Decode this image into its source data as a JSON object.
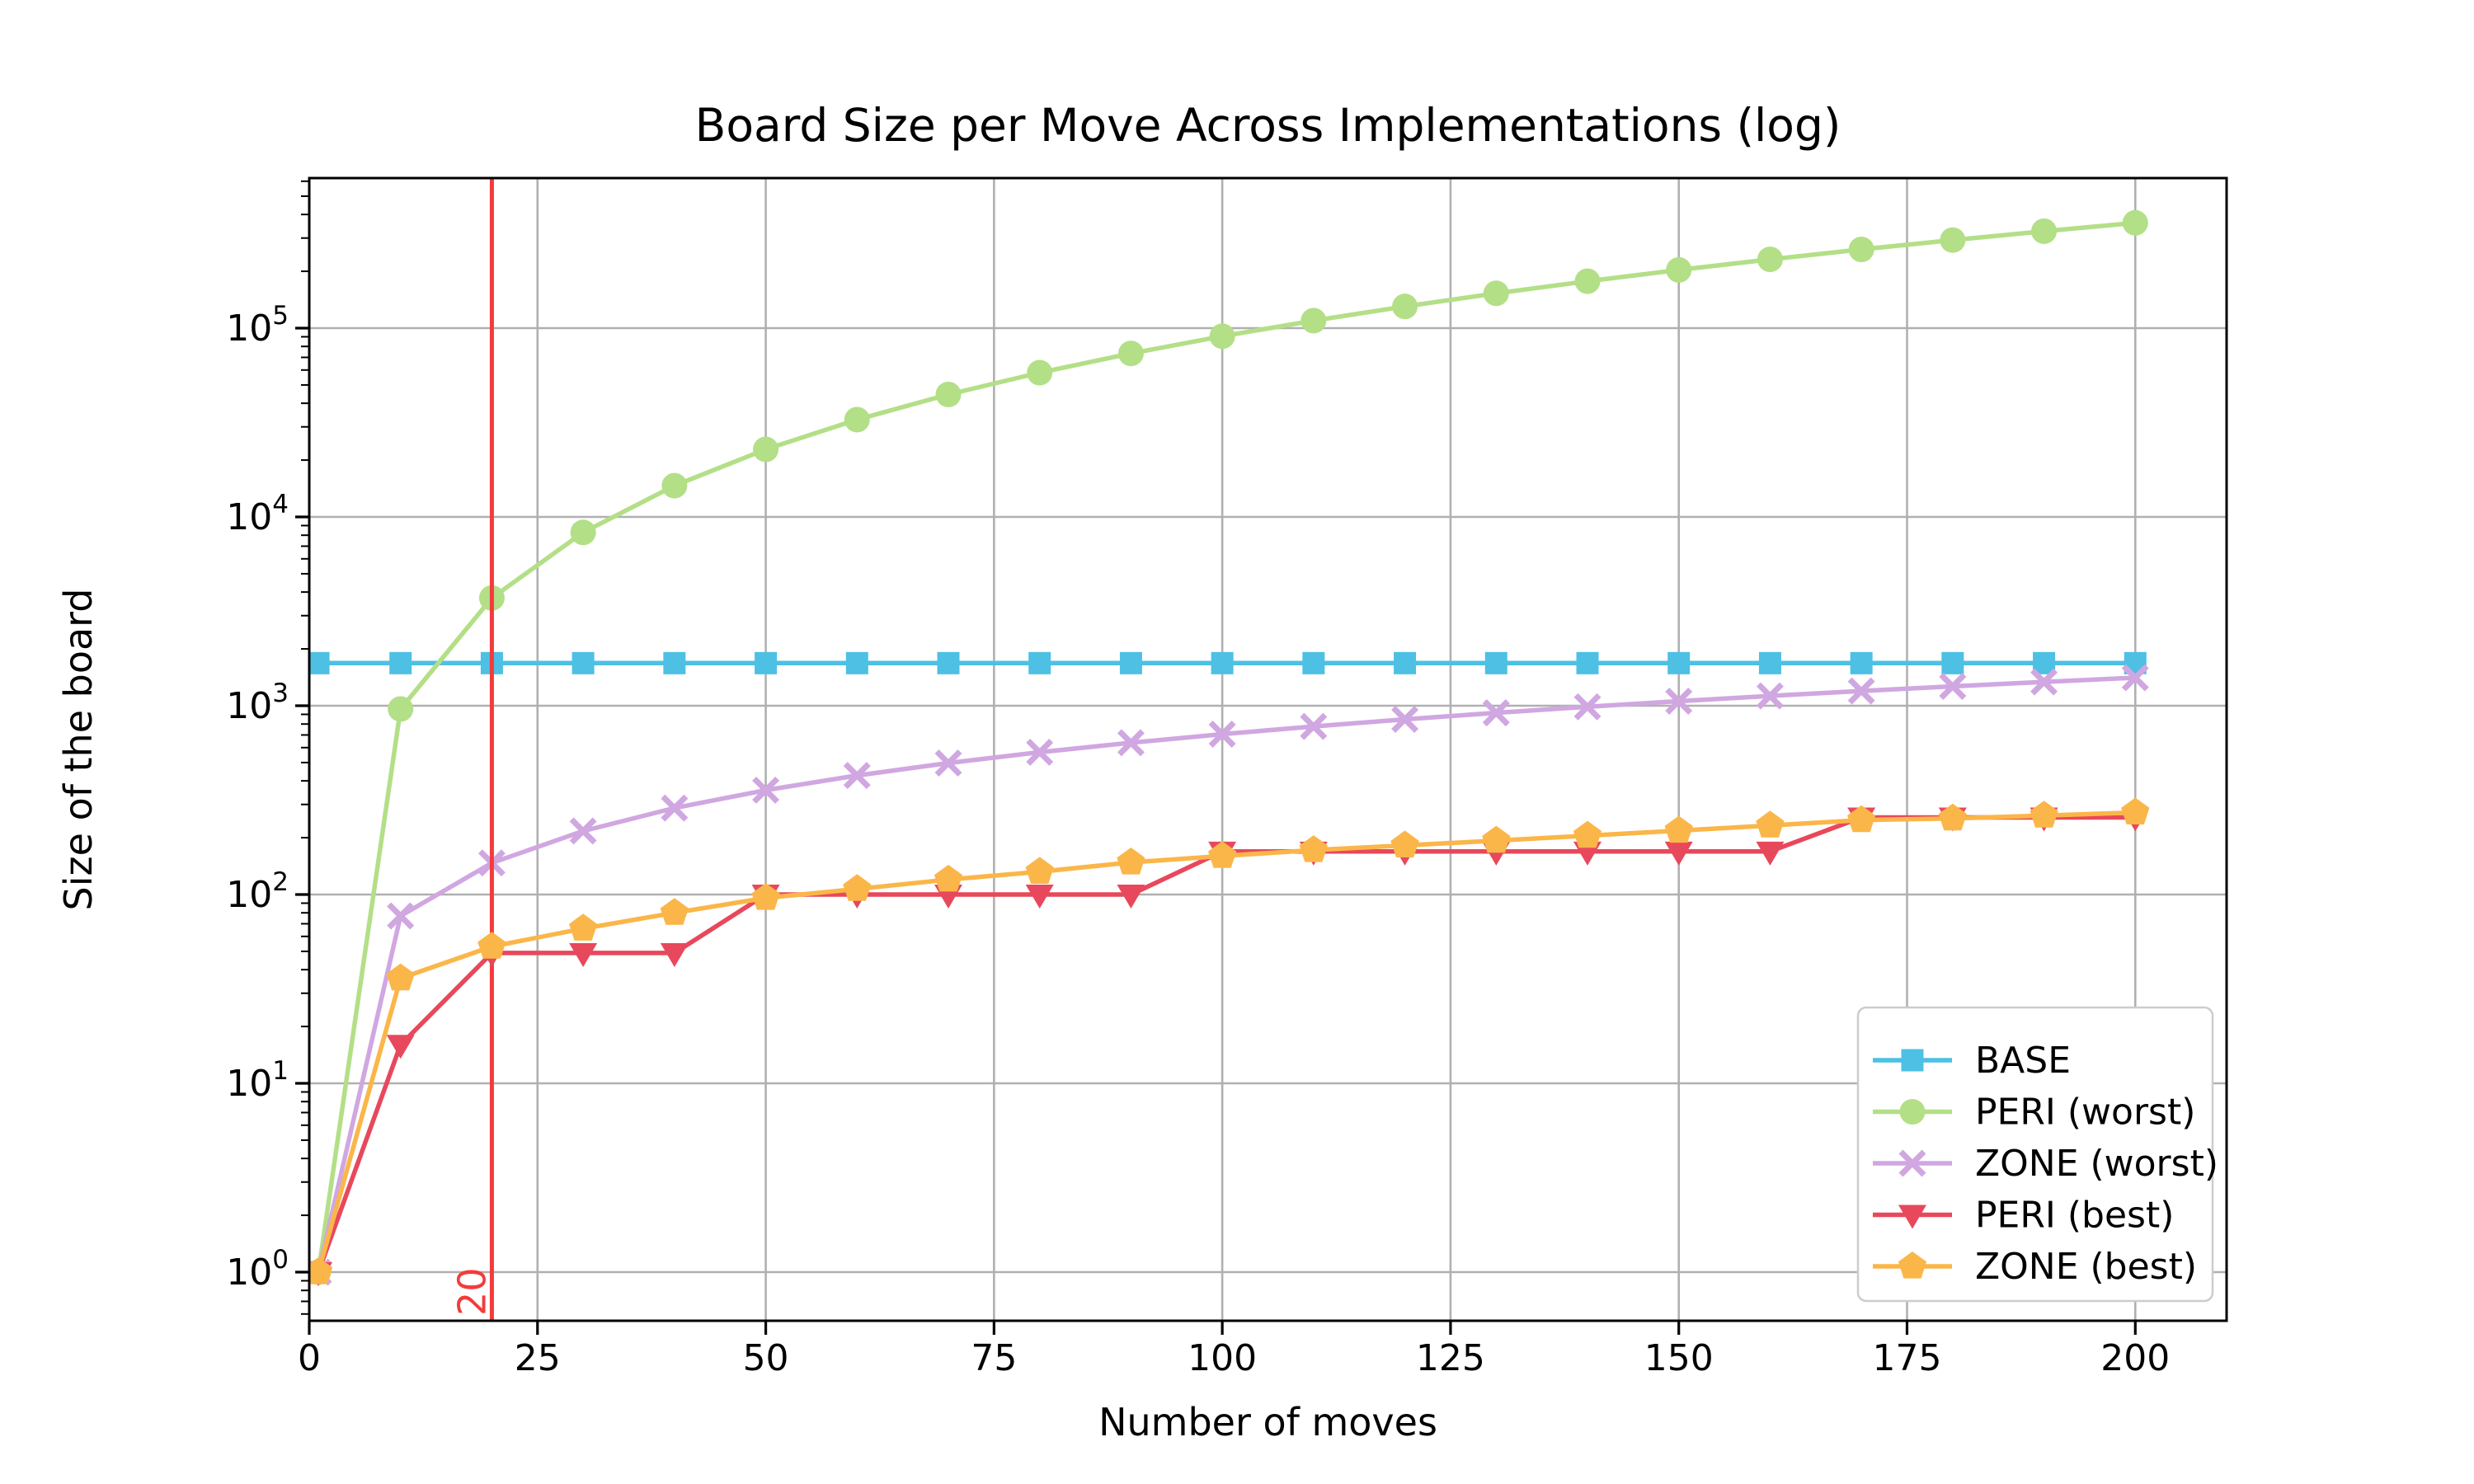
{
  "title": "Board Size per Move Across Implementations (log)",
  "xlabel": "Number of moves",
  "ylabel": "Size of the board",
  "annotation": {
    "vline_x": 20,
    "vline_label": "20",
    "vline_color": "#f43b3b"
  },
  "axes": {
    "xticks": [
      0,
      25,
      50,
      75,
      100,
      125,
      150,
      175,
      200
    ],
    "ytick_base": "10",
    "ytick_exponents": [
      0,
      1,
      2,
      3,
      4,
      5
    ],
    "grid_color": "#b0b0b0",
    "spine_color": "#000000",
    "tick_label_color": "#000000",
    "background": "#ffffff"
  },
  "chart_data": {
    "type": "line",
    "title": "Board Size per Move Across Implementations (log)",
    "xlabel": "Number of moves",
    "ylabel": "Size of the board",
    "x_scale": "linear",
    "y_scale": "log",
    "xlim": [
      0,
      210
    ],
    "ylim": [
      0.57,
      624000
    ],
    "grid": true,
    "legend_position": "lower right",
    "x": [
      1,
      10,
      20,
      30,
      40,
      50,
      60,
      70,
      80,
      90,
      100,
      110,
      120,
      130,
      140,
      150,
      160,
      170,
      180,
      190,
      200
    ],
    "series": [
      {
        "name": "BASE",
        "color": "#4dc0e4",
        "marker": "square",
        "values": [
          1681,
          1681,
          1681,
          1681,
          1681,
          1681,
          1681,
          1681,
          1681,
          1681,
          1681,
          1681,
          1681,
          1681,
          1681,
          1681,
          1681,
          1681,
          1681,
          1681,
          1681
        ]
      },
      {
        "name": "PERI (worst)",
        "color": "#b3df87",
        "marker": "circle",
        "values": [
          1,
          961,
          3721,
          8281,
          14641,
          22801,
          32761,
          44521,
          58081,
          73441,
          90601,
          109561,
          130321,
          152881,
          177241,
          203401,
          231361,
          261121,
          292681,
          326041,
          361201
        ]
      },
      {
        "name": "ZONE (worst)",
        "color": "#d0a7e1",
        "marker": "x",
        "values": [
          1,
          77,
          147,
          217,
          287,
          357,
          427,
          497,
          567,
          637,
          707,
          777,
          847,
          917,
          987,
          1057,
          1127,
          1197,
          1267,
          1337,
          1407
        ]
      },
      {
        "name": "PERI (best)",
        "color": "#e8485c",
        "marker": "triangle-down",
        "values": [
          1,
          16,
          49,
          49,
          49,
          100,
          100,
          100,
          100,
          100,
          169,
          169,
          169,
          169,
          169,
          169,
          169,
          256,
          256,
          256,
          256
        ]
      },
      {
        "name": "ZONE (best)",
        "color": "#fbb649",
        "marker": "pentagon",
        "values": [
          1,
          36,
          53,
          66,
          80,
          96,
          107,
          120,
          132,
          148,
          160,
          172,
          182,
          193,
          205,
          218,
          232,
          248,
          253,
          262,
          272
        ]
      }
    ]
  }
}
